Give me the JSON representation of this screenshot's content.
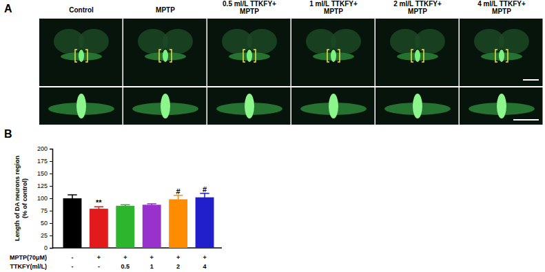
{
  "figure": {
    "panel_labels": [
      "A",
      "B"
    ],
    "image_titles": [
      [
        "Control"
      ],
      [
        "MPTP"
      ],
      [
        "0.5 ml/L TTKFY+",
        "MPTP"
      ],
      [
        "1 ml/L TTKFY+",
        "MPTP"
      ],
      [
        "2 ml/L TTKFY+",
        "MPTP"
      ],
      [
        "4 ml/L TTKFY+",
        "MPTP"
      ]
    ]
  },
  "chart_data": {
    "type": "bar",
    "y_label": [
      "Length of DA neurons region",
      "(% of control)"
    ],
    "category_label": "MPTP(70μM)",
    "categories": [
      "-",
      "+",
      "+",
      "+",
      "+",
      "+"
    ],
    "category_rows": [
      {
        "label": "TTKFY(ml/L)",
        "values": [
          "-",
          "-",
          "0.5",
          "1",
          "2",
          "4"
        ]
      }
    ],
    "values": [
      100,
      79,
      85,
      87,
      98,
      102
    ],
    "errors": [
      7,
      4,
      2,
      2,
      8,
      8
    ],
    "significance": [
      null,
      "**",
      null,
      null,
      "#",
      "#"
    ],
    "colors": [
      "#000000",
      "#e31a1c",
      "#2db52d",
      "#9932cc",
      "#ff8c00",
      "#1f1fcc"
    ],
    "ylim": [
      0,
      200
    ],
    "yticks": [
      0,
      25,
      50,
      75,
      100,
      125,
      150,
      175,
      200
    ]
  }
}
